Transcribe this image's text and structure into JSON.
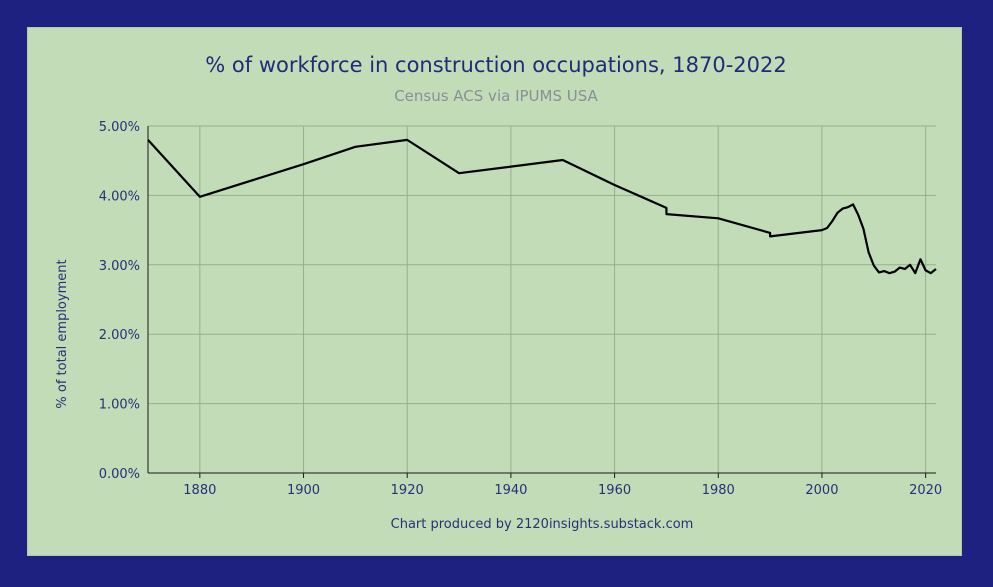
{
  "chart_data": {
    "type": "line",
    "title": "% of workforce in construction occupations, 1870-2022",
    "subtitle": "Census ACS via IPUMS USA",
    "xlabel": "",
    "ylabel": "% of total employment",
    "credit": "Chart produced by 2120insights.substack.com",
    "xlim": [
      1870,
      2022
    ],
    "ylim": [
      0,
      5
    ],
    "x_ticks": [
      1880,
      1900,
      1920,
      1940,
      1960,
      1980,
      2000,
      2020
    ],
    "y_ticks": [
      0,
      1,
      2,
      3,
      4,
      5
    ],
    "y_tick_labels": [
      "0.00%",
      "1.00%",
      "2.00%",
      "3.00%",
      "4.00%",
      "5.00%"
    ],
    "grid": true,
    "colors": {
      "background": "#1f2180",
      "panel": "#c2dcb7",
      "line": "#000000",
      "text": "#1f2c7a"
    },
    "series": [
      {
        "x": [
          1870,
          1880,
          1900,
          1910,
          1920,
          1930,
          1950,
          1960,
          1970,
          1970,
          1980,
          1990,
          1990,
          2000,
          2001,
          2002,
          2003,
          2004,
          2005,
          2006,
          2007,
          2008,
          2009,
          2010,
          2011,
          2012,
          2013,
          2014,
          2015,
          2016,
          2017,
          2018,
          2019,
          2020,
          2021,
          2022
        ],
        "y": [
          4.8,
          3.98,
          4.45,
          4.7,
          4.8,
          4.32,
          4.51,
          4.15,
          3.82,
          3.73,
          3.67,
          3.46,
          3.41,
          3.5,
          3.53,
          3.63,
          3.75,
          3.81,
          3.83,
          3.87,
          3.72,
          3.52,
          3.18,
          2.99,
          2.89,
          2.91,
          2.88,
          2.9,
          2.96,
          2.94,
          3.0,
          2.88,
          3.08,
          2.92,
          2.88,
          2.94
        ]
      }
    ]
  }
}
